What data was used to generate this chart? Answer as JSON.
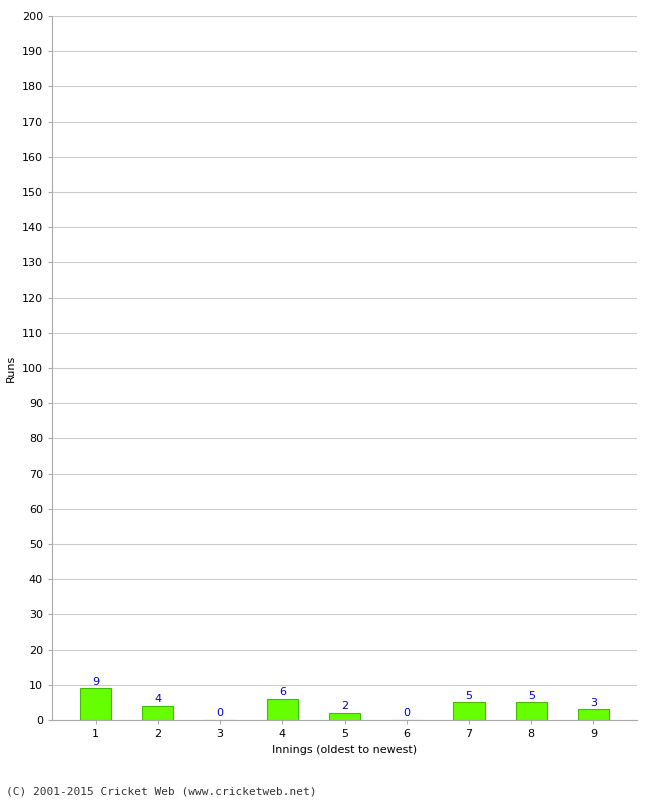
{
  "innings": [
    1,
    2,
    3,
    4,
    5,
    6,
    7,
    8,
    9
  ],
  "runs": [
    9,
    4,
    0,
    6,
    2,
    0,
    5,
    5,
    3
  ],
  "bar_color": "#66ff00",
  "bar_edge_color": "#44bb00",
  "xlabel": "Innings (oldest to newest)",
  "ylabel": "Runs",
  "ylim": [
    0,
    200
  ],
  "yticks": [
    0,
    10,
    20,
    30,
    40,
    50,
    60,
    70,
    80,
    90,
    100,
    110,
    120,
    130,
    140,
    150,
    160,
    170,
    180,
    190,
    200
  ],
  "label_color": "#0000cc",
  "label_fontsize": 8,
  "footer": "(C) 2001-2015 Cricket Web (www.cricketweb.net)",
  "footer_fontsize": 8,
  "grid_color": "#cccccc",
  "background_color": "#ffffff",
  "tick_label_fontsize": 8,
  "axis_label_fontsize": 8,
  "bar_width": 0.5
}
